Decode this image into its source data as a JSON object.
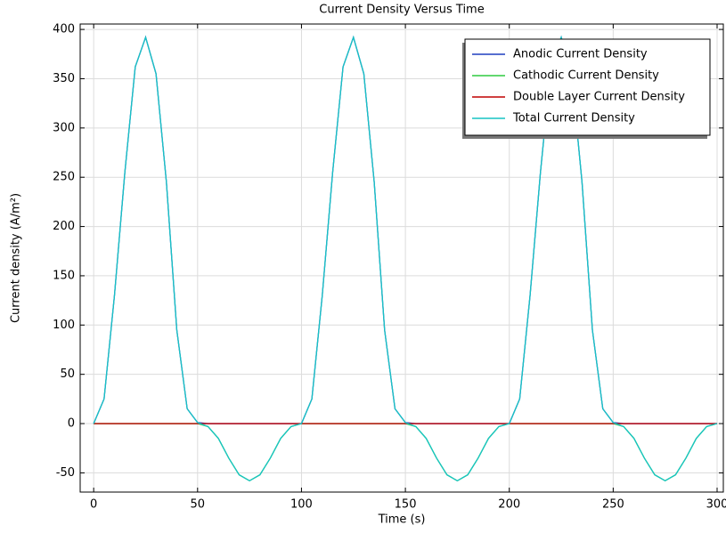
{
  "chart_data": {
    "type": "line",
    "title": "Current Density Versus Time",
    "xlabel": "Time (s)",
    "ylabel": "Current density (A/m²)",
    "x": [
      0,
      5,
      10,
      15,
      20,
      25,
      30,
      35,
      40,
      45,
      50,
      55,
      60,
      65,
      70,
      75,
      80,
      85,
      90,
      95,
      100,
      105,
      110,
      115,
      120,
      125,
      130,
      135,
      140,
      145,
      150,
      155,
      160,
      165,
      170,
      175,
      180,
      185,
      190,
      195,
      200,
      205,
      210,
      215,
      220,
      225,
      230,
      235,
      240,
      245,
      250,
      255,
      260,
      265,
      270,
      275,
      280,
      285,
      290,
      295,
      300
    ],
    "series": [
      {
        "name": "Anodic Current Density",
        "color": "#1f3fbf",
        "values": [
          0,
          25,
          130,
          255,
          362,
          392,
          355,
          245,
          95,
          15,
          1,
          0,
          0,
          0,
          0,
          0,
          0,
          0,
          0,
          0,
          0,
          25,
          130,
          255,
          362,
          392,
          355,
          245,
          95,
          15,
          1,
          0,
          0,
          0,
          0,
          0,
          0,
          0,
          0,
          0,
          0,
          25,
          130,
          255,
          362,
          392,
          355,
          245,
          95,
          15,
          1,
          0,
          0,
          0,
          0,
          0,
          0,
          0,
          0,
          0,
          0
        ]
      },
      {
        "name": "Cathodic Current Density",
        "color": "#2ecc40",
        "values": [
          0,
          0,
          0,
          0,
          0,
          0,
          0,
          0,
          0,
          0,
          0,
          -3,
          -15,
          -35,
          -52,
          -58,
          -52,
          -35,
          -15,
          -3,
          0,
          0,
          0,
          0,
          0,
          0,
          0,
          0,
          0,
          0,
          0,
          -3,
          -15,
          -35,
          -52,
          -58,
          -52,
          -35,
          -15,
          -3,
          0,
          0,
          0,
          0,
          0,
          0,
          0,
          0,
          0,
          0,
          0,
          -3,
          -15,
          -35,
          -52,
          -58,
          -52,
          -35,
          -15,
          -3,
          0
        ]
      },
      {
        "name": "Double Layer Current Density",
        "color": "#c00000",
        "values": [
          0,
          0,
          0,
          0,
          0,
          0,
          0,
          0,
          0,
          0,
          0,
          0,
          0,
          0,
          0,
          0,
          0,
          0,
          0,
          0,
          0,
          0,
          0,
          0,
          0,
          0,
          0,
          0,
          0,
          0,
          0,
          0,
          0,
          0,
          0,
          0,
          0,
          0,
          0,
          0,
          0,
          0,
          0,
          0,
          0,
          0,
          0,
          0,
          0,
          0,
          0,
          0,
          0,
          0,
          0,
          0,
          0,
          0,
          0,
          0,
          0
        ]
      },
      {
        "name": "Total Current Density",
        "color": "#17c4c4",
        "values": [
          0,
          25,
          130,
          255,
          362,
          392,
          355,
          245,
          95,
          15,
          1,
          -3,
          -15,
          -35,
          -52,
          -58,
          -52,
          -35,
          -15,
          -3,
          0,
          25,
          130,
          255,
          362,
          392,
          355,
          245,
          95,
          15,
          1,
          -3,
          -15,
          -35,
          -52,
          -58,
          -52,
          -35,
          -15,
          -3,
          0,
          25,
          130,
          255,
          362,
          392,
          355,
          245,
          95,
          15,
          1,
          -3,
          -15,
          -35,
          -52,
          -58,
          -52,
          -35,
          -15,
          -3,
          0
        ]
      }
    ],
    "xlim": [
      -6.5,
      303
    ],
    "xticks": [
      0,
      50,
      100,
      150,
      200,
      250,
      300
    ],
    "ylim": [
      -69.5,
      405.5
    ],
    "yticks": [
      -50,
      0,
      50,
      100,
      150,
      200,
      250,
      300,
      350,
      400
    ],
    "grid": true,
    "legend": "upper right"
  }
}
